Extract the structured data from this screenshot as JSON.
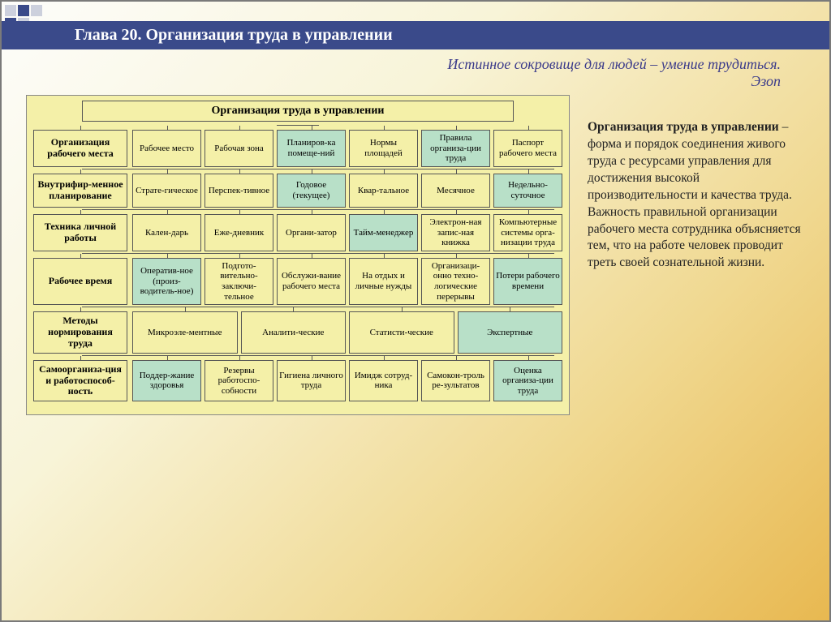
{
  "header": "Глава 20. Организация труда в управлении",
  "quote_line1": "Истинное сокровище для людей – умение трудиться.",
  "quote_line2": "Эзоп",
  "diagram": {
    "title": "Организация труда в управлении",
    "colors": {
      "yellow": "#f4f0a8",
      "green": "#b8e0c8",
      "border": "#555555"
    },
    "rows": [
      {
        "category": "Организация рабочего места",
        "items": [
          {
            "t": "Рабочее место",
            "c": "y"
          },
          {
            "t": "Рабочая зона",
            "c": "y"
          },
          {
            "t": "Планиров-ка помеще-ний",
            "c": "g"
          },
          {
            "t": "Нормы площадей",
            "c": "y"
          },
          {
            "t": "Правила организа-ции труда",
            "c": "g"
          },
          {
            "t": "Паспорт рабочего места",
            "c": "y"
          }
        ]
      },
      {
        "category": "Внутрифир-менное планирование",
        "items": [
          {
            "t": "Страте-гическое",
            "c": "y"
          },
          {
            "t": "Перспек-тивное",
            "c": "y"
          },
          {
            "t": "Годовое (текущее)",
            "c": "g"
          },
          {
            "t": "Квар-тальное",
            "c": "y"
          },
          {
            "t": "Месячное",
            "c": "y"
          },
          {
            "t": "Недельно-суточное",
            "c": "g"
          }
        ]
      },
      {
        "category": "Техника личной работы",
        "items": [
          {
            "t": "Кален-дарь",
            "c": "y"
          },
          {
            "t": "Еже-дневник",
            "c": "y"
          },
          {
            "t": "Органи-затор",
            "c": "y"
          },
          {
            "t": "Тайм-менеджер",
            "c": "g"
          },
          {
            "t": "Электрон-ная запис-ная книжка",
            "c": "y"
          },
          {
            "t": "Компьютерные системы орга-низации труда",
            "c": "y"
          }
        ]
      },
      {
        "category": "Рабочее время",
        "items": [
          {
            "t": "Оператив-ное (произ-водитель-ное)",
            "c": "g"
          },
          {
            "t": "Подгото-вительно-заключи-тельное",
            "c": "y"
          },
          {
            "t": "Обслужи-вание рабочего места",
            "c": "y"
          },
          {
            "t": "На отдых и личные нужды",
            "c": "y"
          },
          {
            "t": "Организаци-онно техно-логические перерывы",
            "c": "y"
          },
          {
            "t": "Потери рабочего времени",
            "c": "g"
          }
        ]
      },
      {
        "category": "Методы нормирования труда",
        "items": [
          {
            "t": "Микроэле-ментные",
            "c": "y"
          },
          {
            "t": "Аналити-ческие",
            "c": "y"
          },
          {
            "t": "Статисти-ческие",
            "c": "y"
          },
          {
            "t": "Экспертные",
            "c": "g"
          }
        ]
      },
      {
        "category": "Самоорганиза-ция и работоспособ-ность",
        "items": [
          {
            "t": "Поддер-жание здоровья",
            "c": "g"
          },
          {
            "t": "Резервы работоспо-собности",
            "c": "y"
          },
          {
            "t": "Гигиена личного труда",
            "c": "y"
          },
          {
            "t": "Имидж сотруд-ника",
            "c": "y"
          },
          {
            "t": "Самокон-троль ре-зультатов",
            "c": "y"
          },
          {
            "t": "Оценка организа-ции труда",
            "c": "g"
          }
        ]
      }
    ]
  },
  "side": {
    "bold": "Организация труда в управлении",
    "rest": " – форма и порядок соединения живого труда с ресурсами управления для достижения высокой производительности и качества труда. Важность правильной организации рабочего места сотрудника объясняется тем, что на работе человек проводит треть своей сознательной жизни."
  }
}
